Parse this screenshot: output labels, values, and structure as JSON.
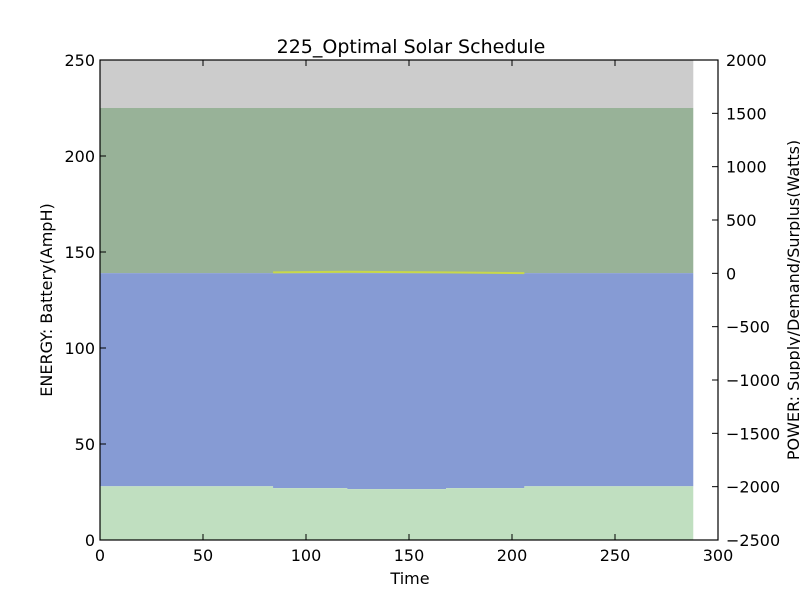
{
  "chart_data": {
    "type": "area",
    "title": "225_Optimal Solar Schedule",
    "xlabel": "Time",
    "ylabel_left": "ENERGY: Battery(AmpH)",
    "ylabel_right": "POWER: Supply/Demand/Surplus(Watts)",
    "xlim": [
      0,
      300
    ],
    "ylim_left": [
      0,
      250
    ],
    "ylim_right": [
      -2500,
      2000
    ],
    "x_ticks": [
      "0",
      "50",
      "100",
      "150",
      "200",
      "250",
      "300"
    ],
    "y_left_ticks": [
      "0",
      "50",
      "100",
      "150",
      "200",
      "250"
    ],
    "y_right_ticks": [
      "2000",
      "1500",
      "1000",
      "500",
      "0",
      "−500",
      "−1000",
      "−1500",
      "−2000",
      "−2500"
    ],
    "x_extent": 288,
    "bands": [
      {
        "name": "band-gray",
        "color": "#cccccc",
        "points": [
          [
            0,
            250
          ],
          [
            288,
            250
          ]
        ],
        "base": 225
      },
      {
        "name": "band-dark-green",
        "color": "#98b298",
        "points": [
          [
            0,
            225
          ],
          [
            288,
            225
          ]
        ],
        "base": 139
      },
      {
        "name": "band-blue",
        "color": "#869bd4",
        "points": [
          [
            0,
            139
          ],
          [
            288,
            139
          ]
        ],
        "base_steps": [
          [
            0,
            28
          ],
          [
            84,
            27
          ],
          [
            120,
            26.5
          ],
          [
            168,
            27
          ],
          [
            206,
            28
          ],
          [
            288,
            28
          ]
        ]
      },
      {
        "name": "band-light-green",
        "color": "#c0dfc0",
        "steps": [
          [
            0,
            28
          ],
          [
            84,
            27
          ],
          [
            120,
            26.5
          ],
          [
            168,
            27
          ],
          [
            206,
            28
          ],
          [
            288,
            28
          ]
        ]
      }
    ],
    "surplus_line": {
      "color": "#c8d84a",
      "steps": [
        [
          84,
          139.4
        ],
        [
          120,
          139.7
        ],
        [
          168,
          139.4
        ],
        [
          206,
          139
        ]
      ]
    }
  }
}
